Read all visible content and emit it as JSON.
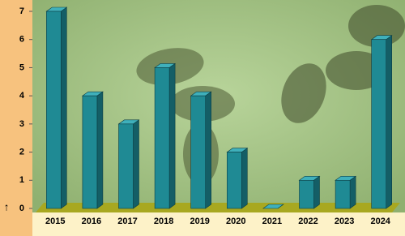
{
  "chart_data": {
    "type": "bar",
    "categories": [
      "2015",
      "2016",
      "2017",
      "2018",
      "2019",
      "2020",
      "2021",
      "2022",
      "2023",
      "2024"
    ],
    "values": [
      7,
      4,
      3,
      5,
      4,
      2,
      0,
      1,
      1,
      6
    ],
    "color": "#1f8a94",
    "ylim": [
      0,
      7
    ],
    "yticks": [
      0,
      1,
      2,
      3,
      4,
      5,
      6,
      7
    ],
    "y_label": "↑"
  }
}
